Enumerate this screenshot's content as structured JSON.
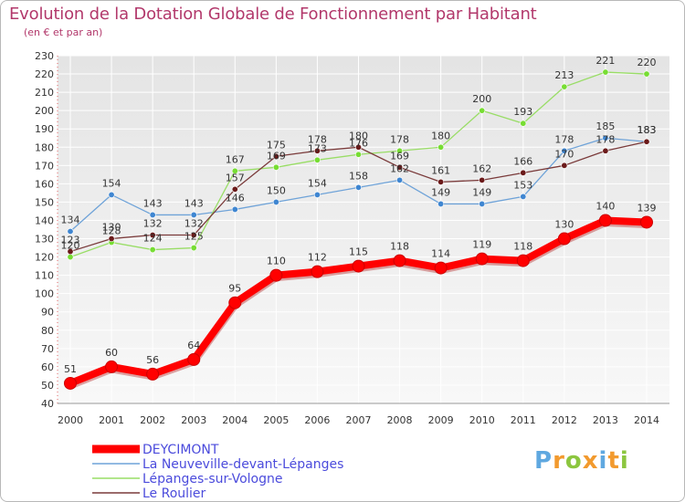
{
  "chart_data": {
    "type": "line",
    "title": "Evolution de la Dotation Globale de Fonctionnement par Habitant",
    "subtitle": "(en € et par an)",
    "xlabel": "",
    "ylabel": "",
    "categories": [
      "2000",
      "2001",
      "2002",
      "2003",
      "2004",
      "2005",
      "2006",
      "2007",
      "2008",
      "2009",
      "2010",
      "2011",
      "2012",
      "2013",
      "2014"
    ],
    "ylim": [
      40,
      230
    ],
    "yticks": [
      40,
      50,
      60,
      70,
      80,
      90,
      100,
      110,
      120,
      130,
      140,
      150,
      160,
      170,
      180,
      190,
      200,
      210,
      220,
      230
    ],
    "grid": true,
    "legend_position": "bottom-left",
    "series": [
      {
        "name": "DEYCIMONT",
        "color": "#ff0000",
        "marker_color": "#ff0000",
        "values": [
          51,
          60,
          56,
          64,
          95,
          110,
          112,
          115,
          118,
          114,
          119,
          118,
          130,
          140,
          139
        ]
      },
      {
        "name": "La Neuveville-devant-Lépanges",
        "color": "#6fa3d8",
        "marker_color": "#3f86d1",
        "values": [
          134,
          154,
          143,
          143,
          146,
          150,
          154,
          158,
          162,
          149,
          149,
          153,
          178,
          185,
          183
        ]
      },
      {
        "name": "Lépanges-sur-Vologne",
        "color": "#99dd66",
        "marker_color": "#77dd33",
        "values": [
          120,
          128,
          124,
          125,
          167,
          169,
          173,
          176,
          178,
          180,
          200,
          193,
          213,
          221,
          220
        ]
      },
      {
        "name": "Le Roulier",
        "color": "#7a3a3a",
        "marker_color": "#6b1a1a",
        "values": [
          123,
          130,
          132,
          132,
          157,
          175,
          178,
          180,
          169,
          161,
          162,
          166,
          170,
          178,
          183
        ]
      }
    ]
  },
  "brand": {
    "letters": [
      "P",
      "r",
      "o",
      "x",
      "i",
      "t",
      "i"
    ],
    "colors": [
      "#5fa8e0",
      "#f29a2e",
      "#8cc63f",
      "#f29a2e",
      "#5fa8e0",
      "#f29a2e",
      "#8cc63f"
    ]
  }
}
